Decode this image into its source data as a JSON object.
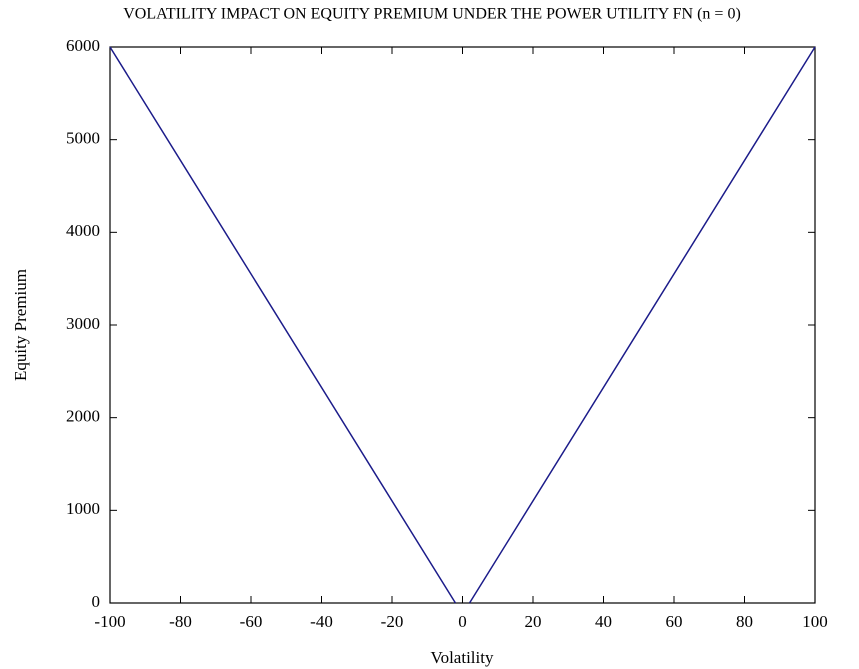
{
  "chart_data": {
    "type": "line",
    "title": "VOLATILITY IMPACT ON EQUITY PREMIUM UNDER THE POWER UTILITY FN (n = 0)",
    "x_label": "Volatility",
    "y_label": "Equity Premium",
    "x": [
      -100,
      -2,
      0,
      2,
      100
    ],
    "series": [
      {
        "name": "Equity Premium",
        "color": "#1c1c8a",
        "values": [
          6000,
          0,
          null,
          0,
          6000
        ]
      }
    ],
    "xlim": [
      -100,
      100
    ],
    "xticks": [
      -100,
      -80,
      -60,
      -40,
      -20,
      0,
      20,
      40,
      60,
      80,
      100
    ],
    "ylim": [
      0,
      6000
    ],
    "yticks": [
      0,
      1000,
      2000,
      3000,
      4000,
      5000,
      6000
    ],
    "grid": false
  }
}
